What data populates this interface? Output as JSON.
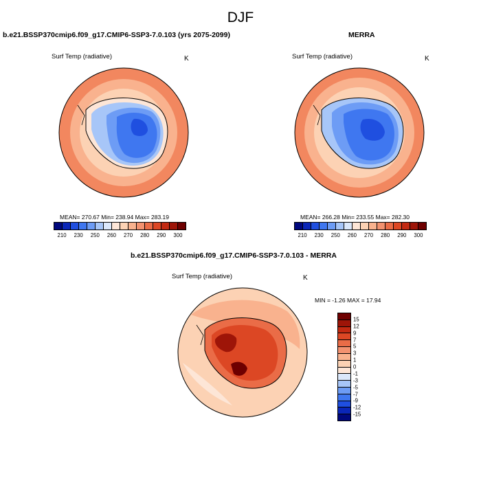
{
  "title": "DJF",
  "panels": {
    "model": {
      "title": "b.e21.BSSP370cmip6.f09_g17.CMIP6-SSP3-7.0.103 (yrs 2075-2099)",
      "variable": "Surf Temp (radiative)",
      "units": "K",
      "stats": "MEAN= 270.67  Min= 238.94  Max= 283.19"
    },
    "obs": {
      "title": "MERRA",
      "variable": "Surf Temp (radiative)",
      "units": "K",
      "stats": "MEAN= 266.28  Min= 233.55  Max= 282.30"
    },
    "diff": {
      "title": "b.e21.BSSP370cmip6.f09_g17.CMIP6-SSP3-7.0.103 - MERRA",
      "variable": "Surf Temp (radiative)",
      "units": "K",
      "stats": "MIN =  -1.26 MAX =  17.94"
    }
  },
  "colorbar_abs": {
    "colors": [
      "#00087d",
      "#0a26b8",
      "#1f4fe0",
      "#3f77f0",
      "#6d9cf5",
      "#a7c6f8",
      "#dbe8fb",
      "#fde6d7",
      "#fcd2b4",
      "#f9b28e",
      "#f39270",
      "#ea6c47",
      "#dc4724",
      "#c32a12",
      "#9e1508",
      "#6e0000"
    ],
    "ticks": [
      "210",
      "230",
      "250",
      "260",
      "270",
      "280",
      "290",
      "300"
    ]
  },
  "colorbar_diff": {
    "colors": [
      "#00087d",
      "#0a26b8",
      "#1f4fe0",
      "#3f77f0",
      "#6d9cf5",
      "#a7c6f8",
      "#dbe8fb",
      "#fde6d7",
      "#fcd2b4",
      "#f9b28e",
      "#f39270",
      "#ea6c47",
      "#dc4724",
      "#c32a12",
      "#9e1508",
      "#6e0000"
    ],
    "ticks": [
      "15",
      "12",
      "9",
      "7",
      "5",
      "3",
      "1",
      "0",
      "-1",
      "-3",
      "-5",
      "-7",
      "-9",
      "-12",
      "-15"
    ]
  }
}
